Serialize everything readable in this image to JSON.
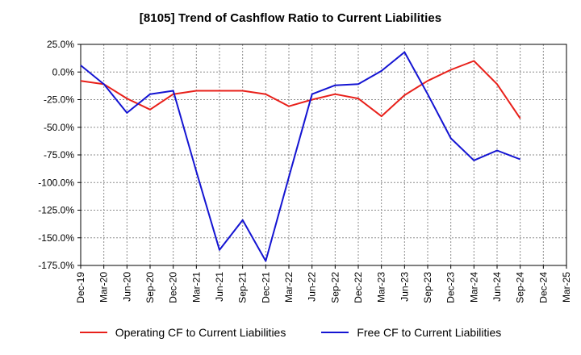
{
  "chart_data": {
    "type": "line",
    "title": "[8105]  Trend of Cashflow Ratio to Current Liabilities",
    "xlabel": "",
    "ylabel": "",
    "ylim": [
      -175,
      25
    ],
    "y_ticks": [
      25,
      0,
      -25,
      -50,
      -75,
      -100,
      -125,
      -150,
      -175
    ],
    "y_tick_labels": [
      "25.0%",
      "0.0%",
      "-25.0%",
      "-50.0%",
      "-75.0%",
      "-100.0%",
      "-125.0%",
      "-150.0%",
      "-175.0%"
    ],
    "x_tick_labels": [
      "Dec-19",
      "Mar-20",
      "Jun-20",
      "Sep-20",
      "Dec-20",
      "Mar-21",
      "Jun-21",
      "Sep-21",
      "Dec-21",
      "Mar-22",
      "Jun-22",
      "Sep-22",
      "Dec-22",
      "Mar-23",
      "Jun-23",
      "Sep-23",
      "Dec-23",
      "Mar-24",
      "Jun-24",
      "Sep-24",
      "Dec-24",
      "Mar-25"
    ],
    "grid": true,
    "legend_position": "bottom",
    "series": [
      {
        "name": "Operating CF to Current Liabilities",
        "color": "#e8201a",
        "values": [
          -8,
          -11,
          -24,
          -34,
          -20,
          -17,
          -17,
          -17,
          -20,
          -31,
          -25,
          -20,
          -24,
          -40,
          -21,
          -8,
          2,
          10,
          -11,
          -42
        ]
      },
      {
        "name": "Free CF to Current Liabilities",
        "color": "#1414d2",
        "values": [
          6,
          -11,
          -37,
          -20,
          -17,
          -90,
          -161,
          -134,
          -171,
          -95,
          -20,
          -12,
          -11,
          1,
          18,
          -20,
          -60,
          -80,
          -71,
          -79
        ]
      }
    ]
  }
}
